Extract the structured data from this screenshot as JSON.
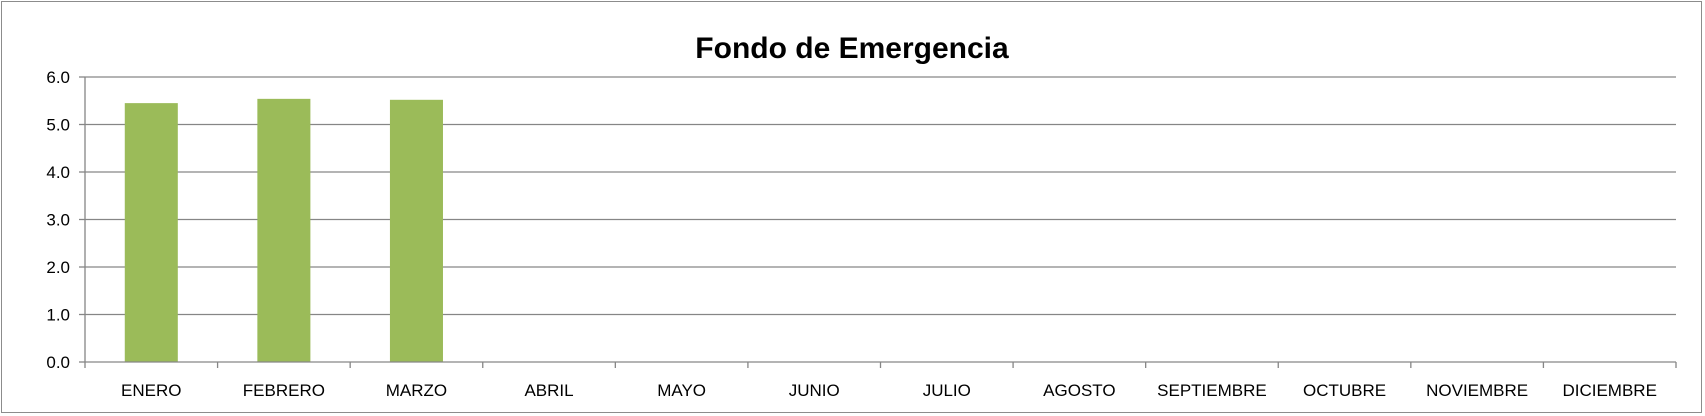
{
  "chart_data": {
    "type": "bar",
    "title": "Fondo de Emergencia",
    "categories": [
      "ENERO",
      "FEBRERO",
      "MARZO",
      "ABRIL",
      "MAYO",
      "JUNIO",
      "JULIO",
      "AGOSTO",
      "SEPTIEMBRE",
      "OCTUBRE",
      "NOVIEMBRE",
      "DICIEMBRE"
    ],
    "values": [
      5.45,
      5.54,
      5.52,
      null,
      null,
      null,
      null,
      null,
      null,
      null,
      null,
      null
    ],
    "yticks": [
      "0.0",
      "1.0",
      "2.0",
      "3.0",
      "4.0",
      "5.0",
      "6.0"
    ],
    "ylim": [
      0,
      6
    ],
    "xlabel": "",
    "ylabel": "",
    "grid": true,
    "bar_color": "#9bbb59"
  }
}
